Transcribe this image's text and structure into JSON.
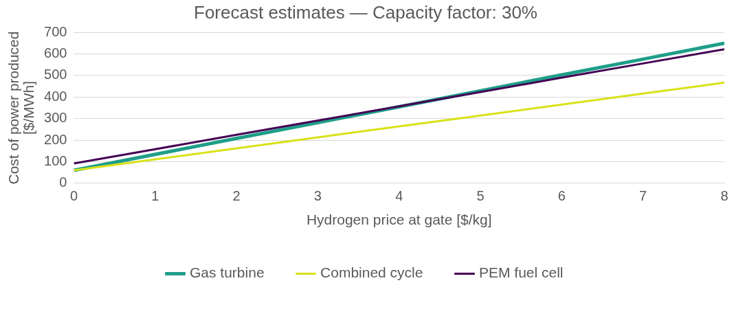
{
  "chart_data": {
    "type": "line",
    "title": "Forecast estimates — Capacity factor: 30%",
    "xlabel": "Hydrogen price at gate [$/kg]",
    "ylabel": "Cost of power produced\n[$/MWh]",
    "x": [
      0,
      1,
      2,
      3,
      4,
      5,
      6,
      7,
      8
    ],
    "xlim": [
      0,
      8
    ],
    "xticks": [
      0,
      1,
      2,
      3,
      4,
      5,
      6,
      7,
      8
    ],
    "ylim": [
      0,
      700
    ],
    "yticks": [
      0,
      100,
      200,
      300,
      400,
      500,
      600,
      700
    ],
    "grid": "y",
    "legend": "bottom",
    "marker": "none",
    "line_style": "solid",
    "series": [
      {
        "name": "Gas turbine",
        "color": "#1f9e89",
        "values": [
          60,
          134,
          208,
          281,
          355,
          429,
          503,
          576,
          650
        ]
      },
      {
        "name": "Combined cycle",
        "color": "#d8e219",
        "values": [
          60,
          111,
          162,
          213,
          264,
          314,
          365,
          416,
          467
        ]
      },
      {
        "name": "PEM fuel cell",
        "color": "#440154",
        "values": [
          92,
          158,
          225,
          291,
          357,
          423,
          490,
          556,
          622
        ]
      }
    ]
  }
}
